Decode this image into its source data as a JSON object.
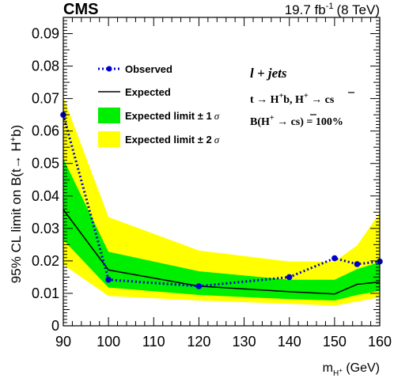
{
  "header": {
    "experiment": "CMS",
    "lumi_value": "19.7 fb",
    "lumi_exp": "-1",
    "lumi_energy": "(8 TeV)"
  },
  "annotation": {
    "line1": "l + jets",
    "line2_main": "t → H",
    "line2_sup": "+",
    "line2_mid": "b, H",
    "line2_sup2": "+",
    "line2_end": " → cs",
    "line3_main": "B(H",
    "line3_sup": "+",
    "line3_end": " → cs) = 100%"
  },
  "axes": {
    "ylabel_pre": "95% CL limit on B(t→ H",
    "ylabel_sup": "+",
    "ylabel_post": "b)",
    "xlabel_main": "m",
    "xlabel_sub": "H",
    "xlabel_subsup": "+",
    "xlabel_unit": " (GeV)"
  },
  "legend": {
    "observed": "Observed",
    "expected": "Expected",
    "band1": "Expected limit ± 1",
    "band2": "Expected limit ± 2",
    "sigma": "σ"
  },
  "colors": {
    "observed": "#0000cc",
    "expected": "#000000",
    "band1": "#00ee00",
    "band2": "#ffff00"
  },
  "chart_data": {
    "type": "line",
    "xlim": [
      90,
      160
    ],
    "ylim": [
      0,
      0.095
    ],
    "x_ticks": [
      90,
      100,
      110,
      120,
      130,
      140,
      150,
      160
    ],
    "y_ticks": [
      0,
      0.01,
      0.02,
      0.03,
      0.04,
      0.05,
      0.06,
      0.07,
      0.08,
      0.09
    ],
    "x_tick_labels": [
      "90",
      "100",
      "110",
      "120",
      "130",
      "140",
      "150",
      "160"
    ],
    "y_tick_labels": [
      "0",
      "0.01",
      "0.02",
      "0.03",
      "0.04",
      "0.05",
      "0.06",
      "0.07",
      "0.08",
      "0.09"
    ],
    "x": [
      90,
      100,
      120,
      140,
      150,
      155,
      160
    ],
    "observed": [
      0.065,
      0.0142,
      0.0122,
      0.015,
      0.0208,
      0.019,
      0.0198
    ],
    "expected": [
      0.0358,
      0.0172,
      0.0122,
      0.0105,
      0.0098,
      0.0128,
      0.0135
    ],
    "band1_low": [
      0.0265,
      0.0118,
      0.0095,
      0.0082,
      0.0078,
      0.0095,
      0.0108
    ],
    "band1_high": [
      0.0515,
      0.0228,
      0.0168,
      0.0142,
      0.0142,
      0.0175,
      0.0196
    ],
    "band2_low": [
      0.0188,
      0.0092,
      0.0078,
      0.0068,
      0.0062,
      0.0075,
      0.0088
    ],
    "band2_high": [
      0.0705,
      0.0335,
      0.0232,
      0.0198,
      0.0198,
      0.0248,
      0.0348
    ]
  }
}
